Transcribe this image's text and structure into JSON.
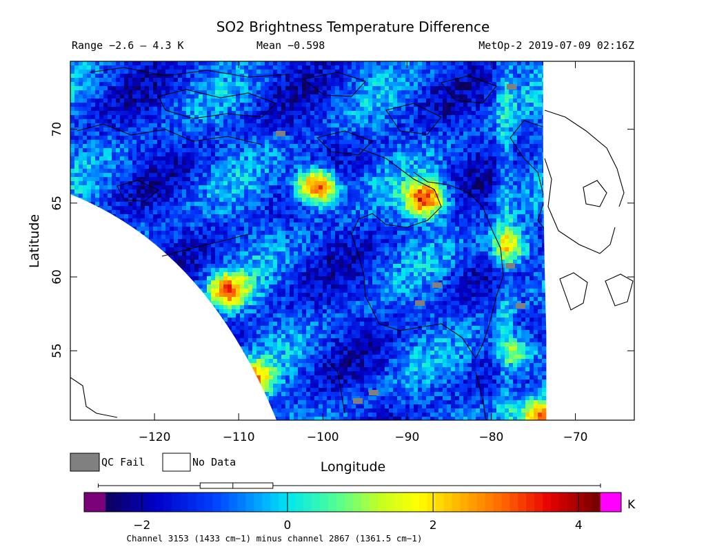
{
  "header": {
    "title": "SO2 Brightness Temperature Difference",
    "range_text": "Range −2.6 – 4.3 K",
    "mean_text": "Mean −0.598",
    "platform_text": "MetOp-2 2019-07-09 02:16Z"
  },
  "legend": {
    "qc_fail_label": "QC Fail",
    "no_data_label": "No Data",
    "qc_fail_color": "#808080",
    "no_data_color": "#ffffff"
  },
  "colorbar": {
    "unit": "K",
    "footnote": "Channel 3153 (1433 cm−1) minus channel 2867 (1361.5 cm−1)",
    "min": -2.5,
    "max": 4.3,
    "ticks": [
      {
        "value": -2,
        "label": "−2"
      },
      {
        "value": 0,
        "label": "0"
      },
      {
        "value": 2,
        "label": "2"
      },
      {
        "value": 4,
        "label": "4"
      }
    ],
    "under_color": "#7a0079",
    "over_color": "#ff00ff",
    "boxplot": {
      "whisker_low": -2.6,
      "q1": -1.2,
      "median": -0.75,
      "q3": -0.2,
      "whisker_high": 4.3
    }
  },
  "chart_data": {
    "type": "heatmap",
    "title": "SO2 Brightness Temperature Difference",
    "xlabel": "Longitude",
    "ylabel": "Latitude",
    "xlim": [
      -130,
      -63
    ],
    "ylim": [
      50.3,
      74.6
    ],
    "x_ticks": [
      {
        "value": -120,
        "label": "−120"
      },
      {
        "value": -110,
        "label": "−110"
      },
      {
        "value": -100,
        "label": "−100"
      },
      {
        "value": -90,
        "label": "−90"
      },
      {
        "value": -80,
        "label": "−80"
      },
      {
        "value": -70,
        "label": "−70"
      }
    ],
    "y_ticks": [
      {
        "value": 55,
        "label": "55"
      },
      {
        "value": 60,
        "label": "60"
      },
      {
        "value": 65,
        "label": "65"
      },
      {
        "value": 70,
        "label": "70"
      }
    ],
    "units": "K",
    "value_range": [
      -2.6,
      4.3
    ],
    "mean": -0.598,
    "hotspots": [
      {
        "lon": -101,
        "lat": 66.3,
        "value": 4.0
      },
      {
        "lon": -88,
        "lat": 65.4,
        "value": 3.6
      },
      {
        "lon": -111.5,
        "lat": 59.2,
        "value": 2.6
      },
      {
        "lon": -108.5,
        "lat": 53.2,
        "value": 2.2
      },
      {
        "lon": -78,
        "lat": 62.2,
        "value": 2.0
      },
      {
        "lon": -77,
        "lat": 55.0,
        "value": 1.5
      },
      {
        "lon": -74.5,
        "lat": 50.6,
        "value": 3.3
      }
    ],
    "colormap": [
      {
        "value": -2.5,
        "color": "#0d0059"
      },
      {
        "value": -1.8,
        "color": "#0000c8"
      },
      {
        "value": -1.0,
        "color": "#0040ff"
      },
      {
        "value": -0.3,
        "color": "#00b4ff"
      },
      {
        "value": 0.0,
        "color": "#00e6f0"
      },
      {
        "value": 0.7,
        "color": "#55ff90"
      },
      {
        "value": 1.3,
        "color": "#c8ff20"
      },
      {
        "value": 1.8,
        "color": "#ffff00"
      },
      {
        "value": 2.4,
        "color": "#ffb000"
      },
      {
        "value": 3.0,
        "color": "#ff6000"
      },
      {
        "value": 3.6,
        "color": "#e60000"
      },
      {
        "value": 4.3,
        "color": "#700000"
      }
    ]
  }
}
